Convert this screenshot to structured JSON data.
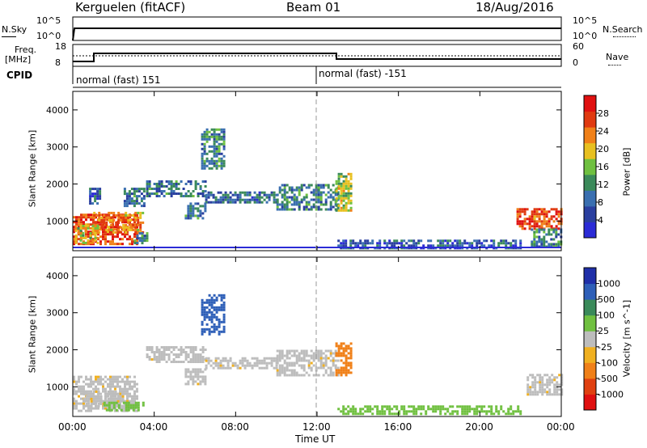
{
  "header": {
    "station": "Kerguelen (fitACF)",
    "beam": "Beam 01",
    "date": "18/Aug/2016"
  },
  "noise_panel": {
    "left_label": "N.Sky",
    "left_ticks": [
      "10^5",
      "10^0"
    ],
    "right_label": "N.Search",
    "right_ticks": [
      "10^5",
      "10^0"
    ]
  },
  "freq_panel": {
    "left_label_top": "Freq.",
    "left_label_unit": "[MHz]",
    "left_ticks": [
      "18",
      "8"
    ],
    "right_label": "Nave",
    "right_ticks": [
      "60",
      "0"
    ],
    "cpid_label": "CPID",
    "cpid_segments": [
      "normal (fast) 151",
      "normal (fast) -151"
    ]
  },
  "time_axis": {
    "ticks": [
      "00:00",
      "04:00",
      "08:00",
      "12:00",
      "16:00",
      "20:00",
      "00:00"
    ],
    "label": "Time UT"
  },
  "colors": {
    "power_scale": [
      "#2b2bd6",
      "#2a3f9f",
      "#3a6fb0",
      "#3b8a5a",
      "#6fc040",
      "#e8c020",
      "#f08018",
      "#e03a10",
      "#e01010"
    ],
    "velocity_scale": [
      "#1f2fa8",
      "#2e5fb8",
      "#3a8a5a",
      "#70c040",
      "#bdbdbd",
      "#f0b020",
      "#f08018",
      "#e04010",
      "#e01010"
    ],
    "ground_scatter": "#bdbdbd"
  },
  "chart_data": [
    {
      "type": "heatmap",
      "name_id": "power",
      "xlabel": "",
      "ylabel": "Slant Range [km]",
      "ylim": [
        200,
        4500
      ],
      "xlim": [
        0,
        24
      ],
      "yticks": [
        "1000",
        "2000",
        "3000",
        "4000"
      ],
      "colorbar": {
        "label": "Power [dB]",
        "ticks": [
          "4",
          "8",
          "12",
          "16",
          "20",
          "24",
          "28"
        ],
        "range": [
          0,
          30
        ]
      },
      "regions": [
        {
          "t0": 0.0,
          "t1": 3.2,
          "r0": 350,
          "r1": 1200,
          "val": 26
        },
        {
          "t0": 1.0,
          "t1": 3.4,
          "r0": 700,
          "r1": 1250,
          "val": 22
        },
        {
          "t0": 0.1,
          "t1": 1.2,
          "r0": 400,
          "r1": 900,
          "val": 18
        },
        {
          "t0": 3.0,
          "t1": 3.7,
          "r0": 400,
          "r1": 700,
          "val": 10
        },
        {
          "t0": 0.8,
          "t1": 1.3,
          "r0": 1500,
          "r1": 1900,
          "val": 6
        },
        {
          "t0": 2.5,
          "t1": 3.5,
          "r0": 1400,
          "r1": 1900,
          "val": 8
        },
        {
          "t0": 3.6,
          "t1": 6.5,
          "r0": 1700,
          "r1": 2100,
          "val": 8
        },
        {
          "t0": 6.5,
          "t1": 10.0,
          "r0": 1500,
          "r1": 1800,
          "val": 7
        },
        {
          "t0": 10.0,
          "t1": 13.0,
          "r0": 1300,
          "r1": 2000,
          "val": 9
        },
        {
          "t0": 12.9,
          "t1": 13.7,
          "r0": 1300,
          "r1": 2300,
          "val": 16
        },
        {
          "t0": 6.3,
          "t1": 7.4,
          "r0": 2400,
          "r1": 3500,
          "val": 10
        },
        {
          "t0": 5.5,
          "t1": 6.5,
          "r0": 1100,
          "r1": 1500,
          "val": 9
        },
        {
          "t0": 13.0,
          "t1": 22.0,
          "r0": 300,
          "r1": 500,
          "val": 6
        },
        {
          "t0": 21.8,
          "t1": 24.0,
          "r0": 800,
          "r1": 1350,
          "val": 26
        },
        {
          "t0": 22.5,
          "t1": 24.0,
          "r0": 300,
          "r1": 800,
          "val": 10
        }
      ]
    },
    {
      "type": "heatmap",
      "name_id": "velocity",
      "xlabel": "Time UT",
      "ylabel": "Slant Range [km]",
      "ylim": [
        200,
        4500
      ],
      "xlim": [
        0,
        24
      ],
      "yticks": [
        "1000",
        "2000",
        "3000",
        "4000"
      ],
      "colorbar": {
        "label": "Velocity [m s^-1]",
        "ticks": [
          "1000",
          "500",
          "100",
          "25",
          "-25",
          "-100",
          "-500",
          "-1000"
        ]
      },
      "regions": [
        {
          "t0": 0.0,
          "t1": 3.2,
          "r0": 350,
          "r1": 1300,
          "cls": "gs"
        },
        {
          "t0": 0.5,
          "t1": 2.5,
          "r0": 500,
          "r1": 900,
          "cls": "gs"
        },
        {
          "t0": 3.6,
          "t1": 6.5,
          "r0": 1700,
          "r1": 2100,
          "cls": "gs"
        },
        {
          "t0": 6.5,
          "t1": 10.0,
          "r0": 1500,
          "r1": 1800,
          "cls": "gs"
        },
        {
          "t0": 10.0,
          "t1": 13.0,
          "r0": 1300,
          "r1": 2000,
          "cls": "gs"
        },
        {
          "t0": 12.9,
          "t1": 13.7,
          "r0": 1300,
          "r1": 2200,
          "cls": "neg"
        },
        {
          "t0": 6.3,
          "t1": 7.4,
          "r0": 2400,
          "r1": 3500,
          "cls": "pos"
        },
        {
          "t0": 5.5,
          "t1": 6.5,
          "r0": 1100,
          "r1": 1500,
          "cls": "gs"
        },
        {
          "t0": 13.0,
          "t1": 22.0,
          "r0": 300,
          "r1": 500,
          "cls": "lowpos"
        },
        {
          "t0": 22.3,
          "t1": 24.0,
          "r0": 800,
          "r1": 1350,
          "cls": "gs"
        },
        {
          "t0": 1.5,
          "t1": 3.5,
          "r0": 400,
          "r1": 600,
          "cls": "lowpos"
        }
      ]
    }
  ]
}
